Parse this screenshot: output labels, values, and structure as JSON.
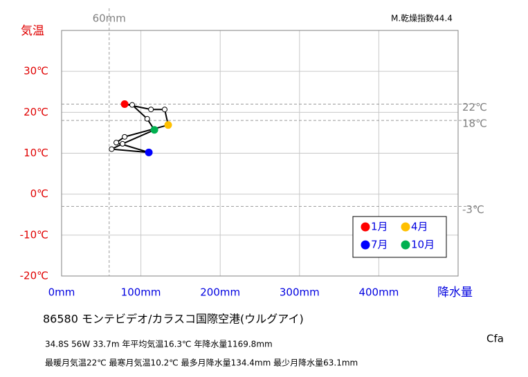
{
  "chart_data": {
    "type": "climograph",
    "x_axis_label": "降水量",
    "y_axis_label": "気温",
    "index_label": "M.乾燥指数44.4",
    "x": [
      79.5,
      112.7,
      130,
      134.4,
      79.5,
      69,
      110,
      63.1,
      76.9,
      117,
      108,
      89
    ],
    "values": [
      22,
      20.7,
      20.7,
      16.9,
      14,
      12.6,
      10.2,
      11,
      12.3,
      15.7,
      18.4,
      21.8
    ],
    "line_color": "#000000",
    "point_colors": [
      "#ff0000",
      null,
      null,
      "#ffc000",
      null,
      null,
      "#0000ff",
      null,
      null,
      "#00b050",
      null,
      null
    ],
    "legend": [
      {
        "name": "1月",
        "color": "#ff0000"
      },
      {
        "name": "4月",
        "color": "#ffc000"
      },
      {
        "name": "7月",
        "color": "#0000ff"
      },
      {
        "name": "10月",
        "color": "#00b050"
      }
    ],
    "xlim": [
      0,
      500
    ],
    "xticks": [
      {
        "value": 0,
        "label": "0mm"
      },
      {
        "value": 100,
        "label": "100mm"
      },
      {
        "value": 200,
        "label": "200mm"
      },
      {
        "value": 300,
        "label": "300mm"
      },
      {
        "value": 400,
        "label": "400mm"
      }
    ],
    "ylim": [
      -20,
      40
    ],
    "yticks": [
      {
        "value": -20,
        "label": "-20℃"
      },
      {
        "value": -10,
        "label": "-10℃"
      },
      {
        "value": 0,
        "label": "0℃"
      },
      {
        "value": 10,
        "label": "10℃"
      },
      {
        "value": 20,
        "label": "20℃"
      },
      {
        "value": 30,
        "label": "30℃"
      }
    ],
    "grid": true,
    "x_reference": [
      {
        "value": 60,
        "label": "60mm"
      }
    ],
    "y_reference": [
      {
        "value": 22,
        "label": "22℃"
      },
      {
        "value": 18,
        "label": "18℃"
      },
      {
        "value": -3,
        "label": "-3℃"
      }
    ]
  },
  "station": "86580  モンテビデオ/カラスコ国際空港(ウルグアイ)",
  "info_line_1": "34.8S  56W 33.7m  年平均気温16.3℃ 年降水量1169.8mm",
  "info_line_2": "最暖月気温22℃ 最寒月気温10.2℃ 最多月降水量134.4mm 最少月降水量63.1mm",
  "climate_class": "Cfa"
}
